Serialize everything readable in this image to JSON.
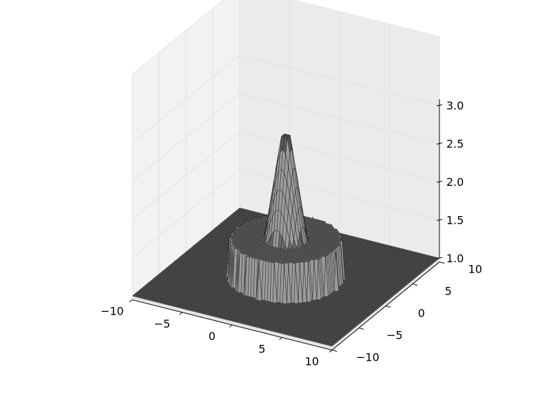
{
  "chart_data": {
    "type": "surface3d",
    "title": "",
    "xlabel": "",
    "ylabel": "",
    "zlabel": "",
    "xlim": [
      -10,
      10
    ],
    "ylim": [
      -10,
      10
    ],
    "zlim": [
      1.0,
      3.0
    ],
    "x_ticks": [
      "−10",
      "−5",
      "0",
      "5",
      "10"
    ],
    "x_tick_values": [
      -10,
      -5,
      0,
      5,
      10
    ],
    "y_ticks": [
      "−10",
      "−5",
      "0",
      "5",
      "10"
    ],
    "y_tick_values": [
      -10,
      -5,
      0,
      5,
      10
    ],
    "z_ticks": [
      "1.0",
      "1.5",
      "2.0",
      "2.5",
      "3.0"
    ],
    "z_tick_values": [
      1.0,
      1.5,
      2.0,
      2.5,
      3.0
    ],
    "grid": true,
    "surface": {
      "description_of_function": "z = 1 outside radius 5; z = 1.5 plateau for radius <= 5; cone rising from 1.5 at radius 1.9 to 2.85 at radius 0.4, flat top",
      "base_level": 1.0,
      "plateau_level": 1.5,
      "plateau_radius": 5,
      "cone_base_radius": 1.9,
      "cone_top_radius": 0.4,
      "cone_top_level": 2.85
    },
    "colors": {
      "surface_face": "#5a5a5a",
      "wire": "#000000",
      "pane_side": "#f2f2f2",
      "pane_back": "#ebebeb",
      "pane_floor": "#e6e6e6",
      "grid": "#e0e0e0"
    }
  }
}
